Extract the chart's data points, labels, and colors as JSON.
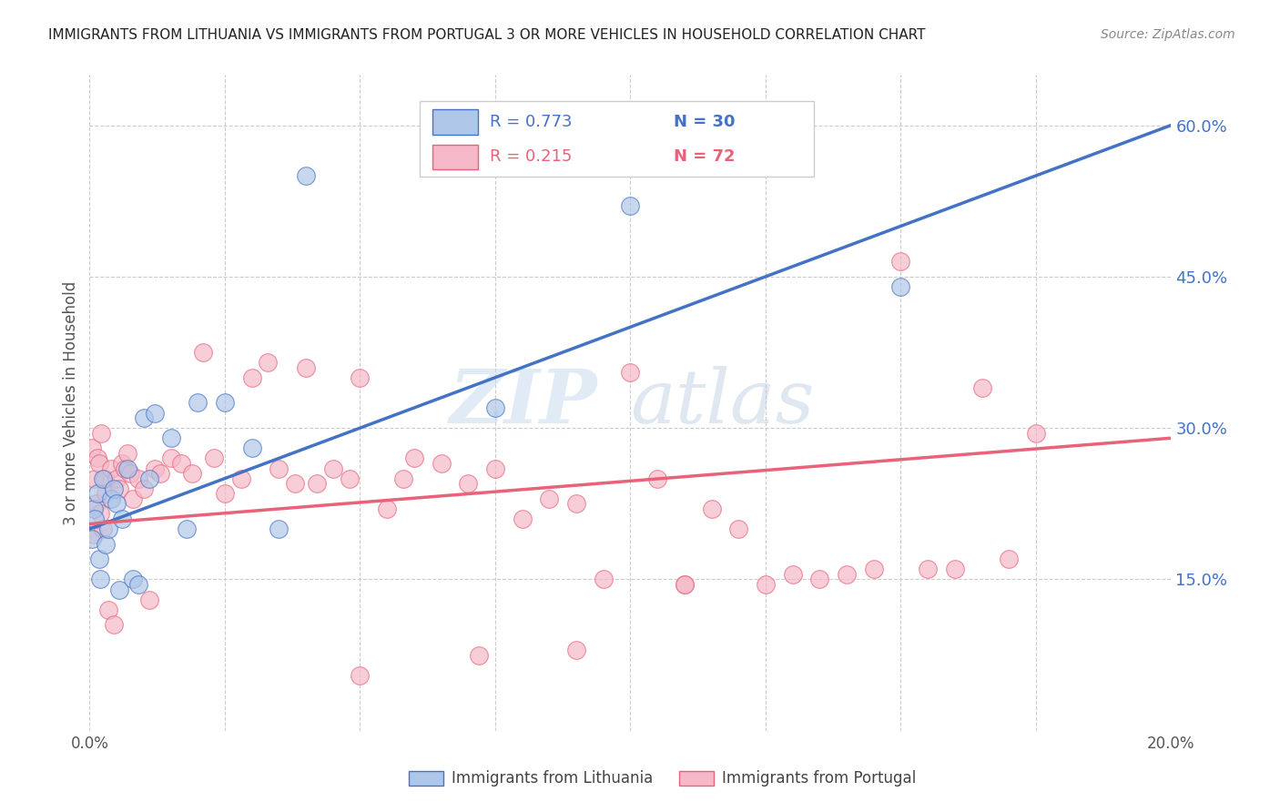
{
  "title": "IMMIGRANTS FROM LITHUANIA VS IMMIGRANTS FROM PORTUGAL 3 OR MORE VEHICLES IN HOUSEHOLD CORRELATION CHART",
  "source": "Source: ZipAtlas.com",
  "ylabel": "3 or more Vehicles in Household",
  "xlim": [
    0.0,
    20.0
  ],
  "ylim": [
    0.0,
    65.0
  ],
  "yticks": [
    15.0,
    30.0,
    45.0,
    60.0
  ],
  "xticks": [
    0.0,
    2.5,
    5.0,
    7.5,
    10.0,
    12.5,
    15.0,
    17.5,
    20.0
  ],
  "background_color": "#ffffff",
  "grid_color": "#cccccc",
  "lithuania_color": "#aec6e8",
  "portugal_color": "#f5b8c8",
  "lithuania_line_color": "#4472c4",
  "portugal_line_color": "#e8637a",
  "R_lithuania": 0.773,
  "N_lithuania": 30,
  "R_portugal": 0.215,
  "N_portugal": 72,
  "watermark_zip": "ZIP",
  "watermark_atlas": "atlas",
  "legend_label_lithuania": "Immigrants from Lithuania",
  "legend_label_portugal": "Immigrants from Portugal",
  "lit_line_x0": 0.0,
  "lit_line_y0": 20.0,
  "lit_line_x1": 20.0,
  "lit_line_y1": 60.0,
  "por_line_x0": 0.0,
  "por_line_y0": 20.5,
  "por_line_x1": 20.0,
  "por_line_y1": 29.0,
  "lithuania_x": [
    0.05,
    0.08,
    0.1,
    0.15,
    0.18,
    0.2,
    0.25,
    0.3,
    0.35,
    0.4,
    0.45,
    0.5,
    0.55,
    0.6,
    0.7,
    0.8,
    0.9,
    1.0,
    1.1,
    1.2,
    1.5,
    1.8,
    2.0,
    2.5,
    3.0,
    3.5,
    4.0,
    7.5,
    10.0,
    15.0
  ],
  "lithuania_y": [
    19.0,
    22.0,
    21.0,
    23.5,
    17.0,
    15.0,
    25.0,
    18.5,
    20.0,
    23.0,
    24.0,
    22.5,
    14.0,
    21.0,
    26.0,
    15.0,
    14.5,
    31.0,
    25.0,
    31.5,
    29.0,
    20.0,
    32.5,
    32.5,
    28.0,
    20.0,
    55.0,
    32.0,
    52.0,
    44.0
  ],
  "portugal_x": [
    0.05,
    0.08,
    0.1,
    0.12,
    0.15,
    0.18,
    0.2,
    0.22,
    0.25,
    0.28,
    0.3,
    0.35,
    0.4,
    0.45,
    0.5,
    0.55,
    0.6,
    0.65,
    0.7,
    0.75,
    0.8,
    0.9,
    1.0,
    1.1,
    1.2,
    1.3,
    1.5,
    1.7,
    1.9,
    2.1,
    2.3,
    2.5,
    2.8,
    3.0,
    3.3,
    3.5,
    3.8,
    4.0,
    4.2,
    4.5,
    4.8,
    5.0,
    5.5,
    5.8,
    6.0,
    6.5,
    7.0,
    7.5,
    8.0,
    8.5,
    9.0,
    9.5,
    10.0,
    10.5,
    11.0,
    11.5,
    12.0,
    12.5,
    13.0,
    14.0,
    14.5,
    15.0,
    15.5,
    16.0,
    16.5,
    17.5,
    5.0,
    7.2,
    9.0,
    11.0,
    13.5,
    17.0
  ],
  "portugal_y": [
    28.0,
    19.5,
    25.0,
    22.5,
    27.0,
    26.5,
    21.5,
    29.5,
    20.0,
    25.0,
    23.5,
    12.0,
    26.0,
    10.5,
    25.0,
    24.0,
    26.5,
    26.0,
    27.5,
    25.5,
    23.0,
    25.0,
    24.0,
    13.0,
    26.0,
    25.5,
    27.0,
    26.5,
    25.5,
    37.5,
    27.0,
    23.5,
    25.0,
    35.0,
    36.5,
    26.0,
    24.5,
    36.0,
    24.5,
    26.0,
    25.0,
    35.0,
    22.0,
    25.0,
    27.0,
    26.5,
    24.5,
    26.0,
    21.0,
    23.0,
    22.5,
    15.0,
    35.5,
    25.0,
    14.5,
    22.0,
    20.0,
    14.5,
    15.5,
    15.5,
    16.0,
    46.5,
    16.0,
    16.0,
    34.0,
    29.5,
    5.5,
    7.5,
    8.0,
    14.5,
    15.0,
    17.0
  ]
}
